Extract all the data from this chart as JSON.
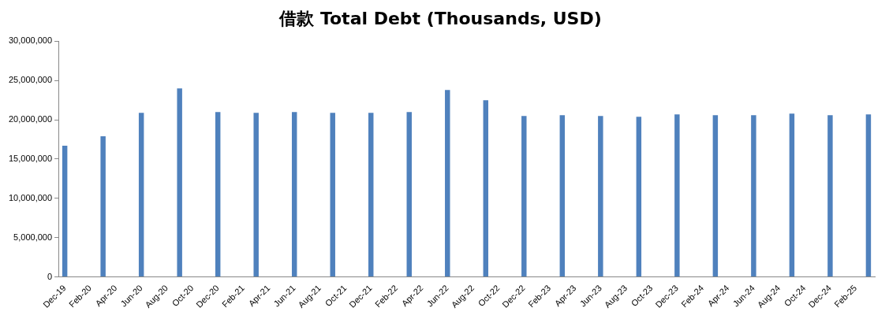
{
  "chart_data": {
    "type": "bar",
    "title": "借款 Total Debt (Thousands, USD)",
    "categories": [
      "Dec-19",
      null,
      "Feb-20",
      null,
      "Apr-20",
      null,
      "Jun-20",
      null,
      "Aug-20",
      null,
      "Oct-20",
      null,
      "Dec-20",
      null,
      "Feb-21",
      null,
      "Apr-21",
      null,
      "Jun-21",
      null,
      "Aug-21",
      null,
      "Oct-21",
      null,
      "Dec-21",
      null,
      "Feb-22",
      null,
      "Apr-22",
      null,
      "Jun-22",
      null,
      "Aug-22",
      null,
      "Oct-22",
      null,
      "Dec-22",
      null,
      "Feb-23",
      null,
      "Apr-23",
      null,
      "Jun-23",
      null,
      "Aug-23",
      null,
      "Oct-23",
      null,
      "Dec-23",
      null,
      "Feb-24",
      null,
      "Apr-24",
      null,
      "Jun-24",
      null,
      "Aug-24",
      null,
      "Oct-24",
      null,
      "Dec-24",
      null,
      "Feb-25",
      null
    ],
    "values": [
      16700000,
      null,
      null,
      17900000,
      null,
      null,
      20900000,
      null,
      null,
      24000000,
      null,
      null,
      21000000,
      null,
      null,
      20900000,
      null,
      null,
      21000000,
      null,
      null,
      20900000,
      null,
      null,
      20900000,
      null,
      null,
      21000000,
      null,
      null,
      23800000,
      null,
      null,
      22500000,
      null,
      null,
      20500000,
      null,
      null,
      20600000,
      null,
      null,
      20500000,
      null,
      null,
      20400000,
      null,
      null,
      20700000,
      null,
      null,
      20600000,
      null,
      null,
      20600000,
      null,
      null,
      20800000,
      null,
      null,
      20600000,
      null,
      null,
      20700000
    ],
    "color": "#4f81bd",
    "ylim": [
      0,
      30000000
    ],
    "yticks": [
      0,
      {
        "value": 5000000,
        "label": "5,000,000"
      },
      {
        "value": 10000000,
        "label": "10,000,000"
      },
      {
        "value": 15000000,
        "label": "15,000,000"
      },
      {
        "value": 20000000,
        "label": "20,000,000"
      },
      {
        "value": 25000000,
        "label": "25,000,000"
      },
      {
        "value": 30000000,
        "label": "30,000,000"
      }
    ],
    "grid": false,
    "legend": false
  }
}
